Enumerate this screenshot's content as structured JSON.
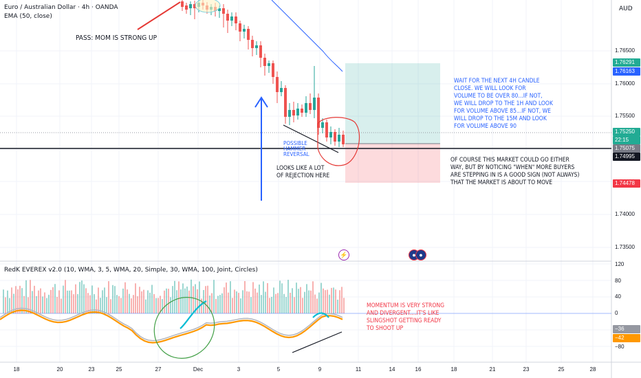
{
  "header": {
    "symbol_title": "Euro / Australian Dollar · 4h · OANDA",
    "ema_label": "EMA (50, close)",
    "currency": "AUD"
  },
  "indicator": {
    "label": "RedK EVEREX v2.0 (10, WMA, 3, 5, WMA, 20, Simple, 30, WMA, 100, Joint, Circles)"
  },
  "annotations": {
    "pass": "PASS: MOM IS STRONG UP",
    "hammer": [
      "POSSIBLE",
      "HAMMER",
      "REVERSAL"
    ],
    "rejection": [
      "LOOKS LIKE A LOT",
      "OF REJECTION HERE"
    ],
    "wait": [
      "WAIT FOR THE NEXT 4H CANDLE",
      "CLOSE. WE WILL LOOK FOR",
      "VOLUME TO BE OVER 80...IF NOT,",
      "WE WILL DROP TO THE 1H AND LOOK",
      "FOR VOLUME ABOVE 85...IF NOT, WE",
      "WILL DROP TO THE 15M AND LOOK",
      "FOR VOLUME ABOVE 90"
    ],
    "either_way": [
      "OF COURSE THIS MARKET COULD GO EITHER",
      "WAY, BUT BY NOTICING \"WHEN\" MORE BUYERS",
      "ARE STEPPING IN IS A GOOD SIGN (NOT ALWAYS)",
      "THAT THE MARKET IS ABOUT TO MOVE"
    ],
    "momentum": [
      "MOMENTUM IS VERY STRONG",
      "AND DIVERGENT....IT'S LIKE",
      "SLINGSHOT GETTING READY",
      "TO SHOOT UP"
    ]
  },
  "price_axis": {
    "labels": [
      "1.76500",
      "1.76000",
      "1.75500",
      "1.74000",
      "1.73500"
    ],
    "tags": [
      {
        "value": "1.76291",
        "color": "#22ab94"
      },
      {
        "value": "1.76163",
        "color": "#2962ff"
      },
      {
        "value": "1.75250",
        "color": "#22ab94"
      },
      {
        "value": "22:15",
        "color": "#22ab94"
      },
      {
        "value": "1.75075",
        "color": "#787b86"
      },
      {
        "value": "1.74995",
        "color": "#131722"
      },
      {
        "value": "1.74478",
        "color": "#f23645"
      }
    ]
  },
  "osc_axis": {
    "labels": [
      "120",
      "80",
      "40",
      "0",
      "−80"
    ],
    "tags": [
      {
        "value": "−36",
        "color": "#9598a1"
      },
      {
        "value": "−42",
        "color": "#ff9800"
      }
    ]
  },
  "time_axis": [
    "18",
    "20",
    "23",
    "25",
    "27",
    "Dec",
    "3",
    "5",
    "9",
    "11",
    "14",
    "16",
    "18",
    "21",
    "23",
    "25",
    "28"
  ],
  "colors": {
    "up": "#26a69a",
    "down": "#ef5350",
    "ema": "#2962ff",
    "orange": "#ff9800"
  }
}
